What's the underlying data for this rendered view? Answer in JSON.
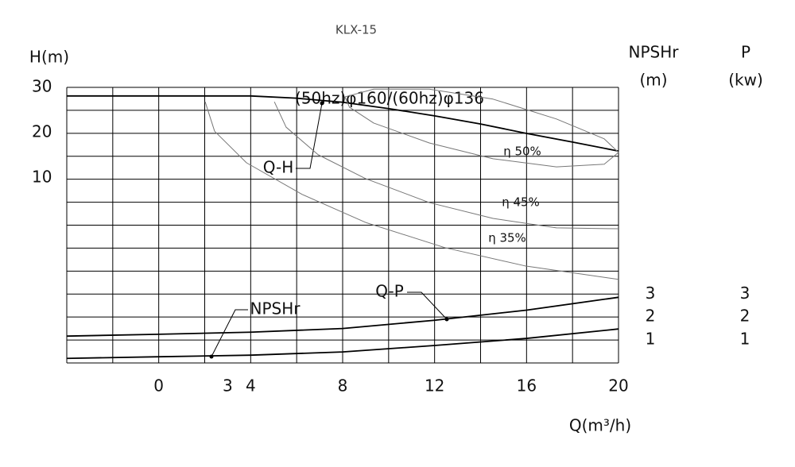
{
  "chart_data": {
    "type": "line",
    "title": "KLX-15",
    "y_label": "H(m)",
    "x_label": "Q(m³/h)",
    "y2_label": "NPSHr",
    "y2_unit": "(m)",
    "y3_label": "P",
    "y3_unit": "(kw)",
    "annotation": "(50hz)φ160/(60hz)φ136",
    "xlim": [
      -4,
      20
    ],
    "xticks": [
      0,
      3,
      4,
      8,
      12,
      16,
      20
    ],
    "ylim": [
      -31,
      30
    ],
    "yticks": [
      10,
      20,
      30
    ],
    "y2lim": [
      0,
      12
    ],
    "y2ticks": [
      1,
      2,
      3
    ],
    "y3lim": [
      0,
      12
    ],
    "y3ticks": [
      1,
      2,
      3
    ],
    "grid": true,
    "xgrid": [
      -4,
      -2,
      0,
      2,
      4,
      6,
      8,
      10,
      12,
      14,
      16,
      18,
      20
    ],
    "y2grid": [
      0,
      1,
      2,
      3,
      4,
      5,
      6,
      7,
      8,
      9,
      10,
      11,
      12
    ],
    "series": [
      {
        "name": "Q-H",
        "color": "#000000",
        "x": [
          -4,
          0,
          4,
          6,
          8,
          10,
          12,
          14,
          16,
          18,
          20
        ],
        "values": [
          28.1,
          28.1,
          28.1,
          27.6,
          26.7,
          25.3,
          23.7,
          21.9,
          19.8,
          17.9,
          15.9
        ]
      },
      {
        "name": "Q-P",
        "color": "#000000",
        "axis": "y3",
        "x": [
          -4,
          0,
          4,
          8,
          12,
          16,
          20
        ],
        "values": [
          1.17,
          1.25,
          1.34,
          1.5,
          1.86,
          2.3,
          2.86
        ]
      },
      {
        "name": "NPSHr",
        "color": "#000000",
        "axis": "y2",
        "x": [
          -4,
          0,
          4,
          8,
          12,
          16,
          20
        ],
        "values": [
          0.2,
          0.27,
          0.34,
          0.48,
          0.76,
          1.07,
          1.48
        ]
      },
      {
        "name": "η 50%",
        "color": "#777777",
        "x": [
          8.1,
          9.35,
          11.77,
          14.54,
          17.3,
          19.38,
          20,
          19.38,
          17.3,
          14.54,
          11.77,
          9.35,
          8.3,
          8.1
        ],
        "values": [
          27.9,
          29.6,
          29.6,
          27.4,
          23.0,
          18.6,
          15.6,
          13.0,
          12.4,
          14.2,
          17.7,
          22.1,
          25.6,
          27.9
        ]
      },
      {
        "name": "η 45%",
        "color": "#777777",
        "x": [
          5.03,
          5.54,
          6.93,
          9.0,
          11.77,
          14.54,
          17.3,
          20
        ],
        "values": [
          26.8,
          21.2,
          15.1,
          9.8,
          4.5,
          1.0,
          -1.1,
          -1.3
        ]
      },
      {
        "name": "η 35%",
        "color": "#777777",
        "x": [
          2.02,
          2.43,
          3.82,
          6.24,
          9.0,
          12.46,
          15.92,
          20
        ],
        "values": [
          26.8,
          20.3,
          13.3,
          6.3,
          0.1,
          -5.5,
          -9.5,
          -12.5
        ]
      }
    ]
  }
}
